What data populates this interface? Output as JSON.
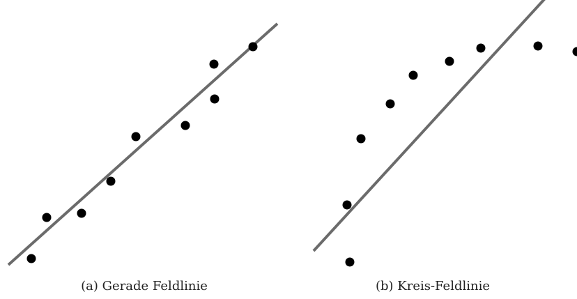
{
  "chart_data": [
    {
      "type": "scatter",
      "caption": "(a) Gerade Feldlinie",
      "colors": {
        "points": "#000000",
        "line": "#6b6b6b"
      },
      "xlim": [
        0,
        414
      ],
      "ylim": [
        0,
        390
      ],
      "points": [
        {
          "x": 45,
          "y": 19
        },
        {
          "x": 67,
          "y": 78
        },
        {
          "x": 117,
          "y": 84
        },
        {
          "x": 159,
          "y": 130
        },
        {
          "x": 195,
          "y": 194
        },
        {
          "x": 266,
          "y": 210
        },
        {
          "x": 308,
          "y": 248
        },
        {
          "x": 307,
          "y": 298
        },
        {
          "x": 363,
          "y": 323
        }
      ],
      "line": {
        "x1": 12,
        "y1": 10,
        "x2": 398,
        "y2": 356
      }
    },
    {
      "type": "scatter",
      "caption": "(b) Kreis-Feldlinie",
      "colors": {
        "points": "#000000",
        "line": "#6b6b6b"
      },
      "xlim": [
        0,
        414
      ],
      "ylim": [
        0,
        390
      ],
      "points": [
        {
          "x": 88,
          "y": 14
        },
        {
          "x": 84,
          "y": 96
        },
        {
          "x": 104,
          "y": 191
        },
        {
          "x": 146,
          "y": 241
        },
        {
          "x": 179,
          "y": 282
        },
        {
          "x": 231,
          "y": 302
        },
        {
          "x": 276,
          "y": 321
        },
        {
          "x": 358,
          "y": 324
        },
        {
          "x": 414,
          "y": 316
        }
      ],
      "line": {
        "x1": 36,
        "y1": 30,
        "x2": 390,
        "y2": 416
      }
    }
  ]
}
